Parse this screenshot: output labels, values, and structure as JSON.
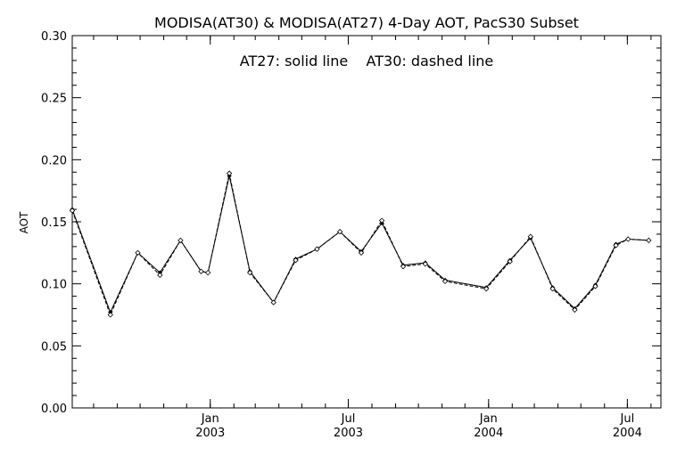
{
  "chart_data": {
    "type": "line",
    "title": "MODISA(AT30) & MODISA(AT27) 4-Day AOT, PacS30 Subset",
    "annotation": "AT27: solid line    AT30: dashed line",
    "ylabel": "AOT",
    "xlabel": "",
    "ylim": [
      0,
      0.3
    ],
    "yticks": [
      "0.00",
      "0.05",
      "0.10",
      "0.15",
      "0.20",
      "0.25",
      "0.30"
    ],
    "xlim": [
      "2002-07-04",
      "2004-08-14"
    ],
    "xticks": [
      {
        "date": "2003-01-01",
        "month": "Jan",
        "year": "2003"
      },
      {
        "date": "2003-07-01",
        "month": "Jul",
        "year": "2003"
      },
      {
        "date": "2004-01-01",
        "month": "Jan",
        "year": "2004"
      },
      {
        "date": "2004-07-01",
        "month": "Jul",
        "year": "2004"
      }
    ],
    "x": [
      "2002-07-04",
      "2002-08-23",
      "2002-10-17",
      "2002-12-09",
      "2003-02-03",
      "2003-03-29",
      "2003-05-25",
      "2003-07-13",
      "2003-09-01",
      "2003-10-24",
      "2003-12-11",
      "2004-02-01",
      "2004-03-25",
      "2004-05-16",
      "2004-07-07",
      "2004-08-01"
    ],
    "series": [
      {
        "name": "AT27",
        "style": "solid",
        "color": "#000000",
        "x": [
          "2002-07-04",
          "2002-08-23",
          "2002-09-28",
          "2002-10-27",
          "2002-11-23",
          "2002-12-20",
          "2002-12-29",
          "2003-01-26",
          "2003-02-22",
          "2003-03-25",
          "2003-04-23",
          "2003-05-21",
          "2003-06-20",
          "2003-07-18",
          "2003-08-14",
          "2003-09-11",
          "2003-10-10",
          "2003-11-05",
          "2003-12-29",
          "2004-01-29",
          "2004-02-25",
          "2004-03-25",
          "2004-04-23",
          "2004-05-20",
          "2004-06-16",
          "2004-07-02",
          "2004-07-29"
        ],
        "values": [
          0.16,
          0.077,
          0.125,
          0.109,
          0.135,
          0.11,
          0.109,
          0.187,
          0.11,
          0.085,
          0.12,
          0.128,
          0.142,
          0.126,
          0.149,
          0.115,
          0.117,
          0.103,
          0.097,
          0.119,
          0.137,
          0.097,
          0.08,
          0.099,
          0.132,
          0.136,
          0.135
        ]
      },
      {
        "name": "AT30",
        "style": "dashed",
        "color": "#000000",
        "x": [
          "2002-07-04",
          "2002-08-23",
          "2002-09-28",
          "2002-10-27",
          "2002-11-23",
          "2002-12-20",
          "2002-12-29",
          "2003-01-26",
          "2003-02-22",
          "2003-03-25",
          "2003-04-23",
          "2003-05-21",
          "2003-06-20",
          "2003-07-18",
          "2003-08-14",
          "2003-09-11",
          "2003-10-10",
          "2003-11-05",
          "2003-12-29",
          "2004-01-29",
          "2004-02-25",
          "2004-03-25",
          "2004-04-23",
          "2004-05-20",
          "2004-06-16",
          "2004-07-02",
          "2004-07-29"
        ],
        "values": [
          0.159,
          0.075,
          0.125,
          0.107,
          0.135,
          0.11,
          0.109,
          0.189,
          0.109,
          0.085,
          0.119,
          0.128,
          0.142,
          0.125,
          0.151,
          0.114,
          0.116,
          0.102,
          0.096,
          0.118,
          0.138,
          0.096,
          0.079,
          0.098,
          0.131,
          0.136,
          0.135
        ]
      }
    ]
  }
}
